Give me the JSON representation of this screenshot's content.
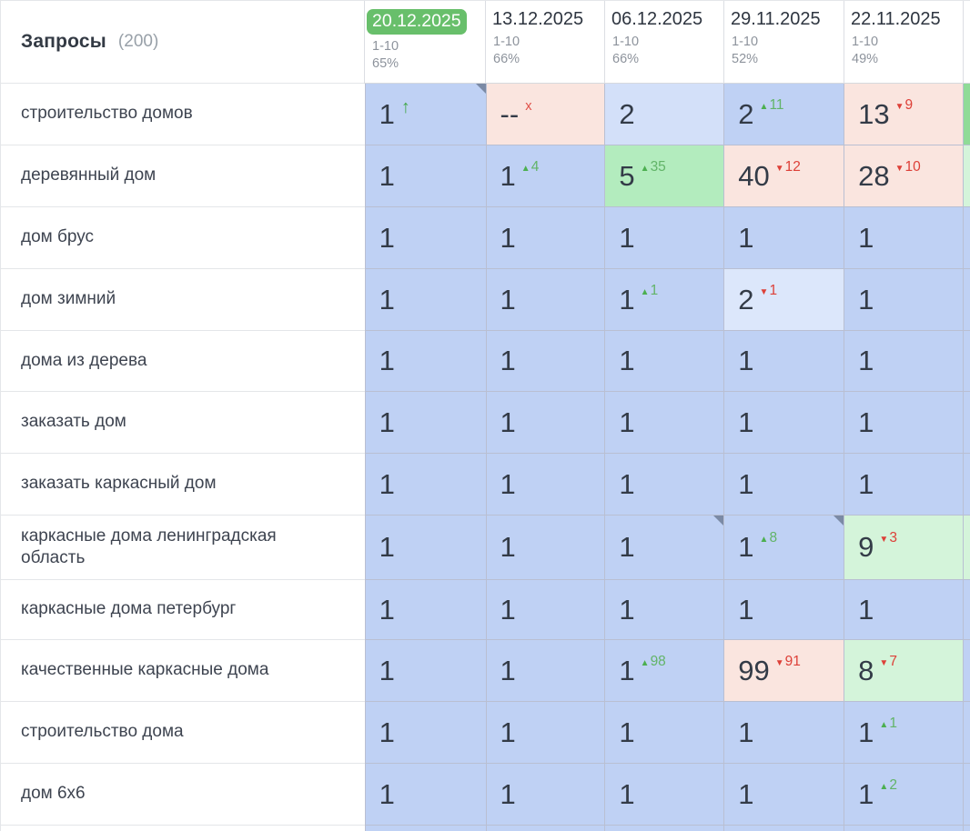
{
  "header": {
    "title": "Запросы",
    "count": "(200)",
    "columns": [
      {
        "date": "20.12.2025",
        "range": "1-10",
        "percent": "65%",
        "highlighted": true
      },
      {
        "date": "13.12.2025",
        "range": "1-10",
        "percent": "66%",
        "highlighted": false
      },
      {
        "date": "06.12.2025",
        "range": "1-10",
        "percent": "66%",
        "highlighted": false
      },
      {
        "date": "29.11.2025",
        "range": "1-10",
        "percent": "52%",
        "highlighted": false
      },
      {
        "date": "22.11.2025",
        "range": "1-10",
        "percent": "49%",
        "highlighted": false
      }
    ]
  },
  "colors": {
    "cell_palette": {
      "blue": "#bfd1f4",
      "blue_light": "#d3e0f9",
      "blue_lighter": "#dce7fb",
      "pink": "#fae5df",
      "green": "#b3ecbe",
      "green_light": "#d4f4da",
      "green_med": "#8fdb97",
      "white": "#ffffff"
    },
    "accent": {
      "highlight_pill": "#68bf6b",
      "up": "#4caf50",
      "down": "#dd4038",
      "note_marker": "#7b8aa5"
    }
  },
  "rows": [
    {
      "keyword": "строительство домов",
      "cells": [
        {
          "value": "1",
          "indicator": "up-arrow",
          "bg": "blue",
          "note": true
        },
        {
          "value": "--",
          "indicator": "x",
          "bg": "pink"
        },
        {
          "value": "2",
          "bg": "blue_light"
        },
        {
          "value": "2",
          "change": {
            "dir": "up",
            "amount": "11"
          },
          "bg": "blue"
        },
        {
          "value": "13",
          "change": {
            "dir": "down",
            "amount": "9"
          },
          "bg": "pink"
        }
      ],
      "edge": "green_med"
    },
    {
      "keyword": "деревянный дом",
      "cells": [
        {
          "value": "1",
          "bg": "blue"
        },
        {
          "value": "1",
          "change": {
            "dir": "up",
            "amount": "4"
          },
          "bg": "blue"
        },
        {
          "value": "5",
          "change": {
            "dir": "up",
            "amount": "35"
          },
          "bg": "green"
        },
        {
          "value": "40",
          "change": {
            "dir": "down",
            "amount": "12"
          },
          "bg": "pink"
        },
        {
          "value": "28",
          "change": {
            "dir": "down",
            "amount": "10"
          },
          "bg": "pink"
        }
      ],
      "edge": "green_light"
    },
    {
      "keyword": "дом брус",
      "cells": [
        {
          "value": "1",
          "bg": "blue"
        },
        {
          "value": "1",
          "bg": "blue"
        },
        {
          "value": "1",
          "bg": "blue"
        },
        {
          "value": "1",
          "bg": "blue"
        },
        {
          "value": "1",
          "bg": "blue"
        }
      ],
      "edge": "blue"
    },
    {
      "keyword": "дом зимний",
      "cells": [
        {
          "value": "1",
          "bg": "blue"
        },
        {
          "value": "1",
          "bg": "blue"
        },
        {
          "value": "1",
          "change": {
            "dir": "up",
            "amount": "1"
          },
          "bg": "blue"
        },
        {
          "value": "2",
          "change": {
            "dir": "down",
            "amount": "1"
          },
          "bg": "blue_lighter"
        },
        {
          "value": "1",
          "bg": "blue"
        }
      ],
      "edge": "blue"
    },
    {
      "keyword": "дома из дерева",
      "cells": [
        {
          "value": "1",
          "bg": "blue"
        },
        {
          "value": "1",
          "bg": "blue"
        },
        {
          "value": "1",
          "bg": "blue"
        },
        {
          "value": "1",
          "bg": "blue"
        },
        {
          "value": "1",
          "bg": "blue"
        }
      ],
      "edge": "blue"
    },
    {
      "keyword": "заказать дом",
      "cells": [
        {
          "value": "1",
          "bg": "blue"
        },
        {
          "value": "1",
          "bg": "blue"
        },
        {
          "value": "1",
          "bg": "blue"
        },
        {
          "value": "1",
          "bg": "blue"
        },
        {
          "value": "1",
          "bg": "blue"
        }
      ],
      "edge": "blue"
    },
    {
      "keyword": "заказать каркасный дом",
      "cells": [
        {
          "value": "1",
          "bg": "blue"
        },
        {
          "value": "1",
          "bg": "blue"
        },
        {
          "value": "1",
          "bg": "blue"
        },
        {
          "value": "1",
          "bg": "blue"
        },
        {
          "value": "1",
          "bg": "blue"
        }
      ],
      "edge": "blue"
    },
    {
      "keyword": "каркасные дома ленинградская область",
      "cells": [
        {
          "value": "1",
          "bg": "blue"
        },
        {
          "value": "1",
          "bg": "blue"
        },
        {
          "value": "1",
          "bg": "blue",
          "note": true
        },
        {
          "value": "1",
          "change": {
            "dir": "up",
            "amount": "8"
          },
          "bg": "blue",
          "note": true
        },
        {
          "value": "9",
          "change": {
            "dir": "down",
            "amount": "3"
          },
          "bg": "green_light"
        }
      ],
      "edge": "green_light"
    },
    {
      "keyword": "каркасные дома петербург",
      "cells": [
        {
          "value": "1",
          "bg": "blue"
        },
        {
          "value": "1",
          "bg": "blue"
        },
        {
          "value": "1",
          "bg": "blue"
        },
        {
          "value": "1",
          "bg": "blue"
        },
        {
          "value": "1",
          "bg": "blue"
        }
      ],
      "edge": "blue"
    },
    {
      "keyword": "качественные каркасные дома",
      "cells": [
        {
          "value": "1",
          "bg": "blue"
        },
        {
          "value": "1",
          "bg": "blue"
        },
        {
          "value": "1",
          "change": {
            "dir": "up",
            "amount": "98"
          },
          "bg": "blue"
        },
        {
          "value": "99",
          "change": {
            "dir": "down",
            "amount": "91"
          },
          "bg": "pink"
        },
        {
          "value": "8",
          "change": {
            "dir": "down",
            "amount": "7"
          },
          "bg": "green_light"
        }
      ],
      "edge": "blue"
    },
    {
      "keyword": "строительство дома",
      "cells": [
        {
          "value": "1",
          "bg": "blue"
        },
        {
          "value": "1",
          "bg": "blue"
        },
        {
          "value": "1",
          "bg": "blue"
        },
        {
          "value": "1",
          "bg": "blue"
        },
        {
          "value": "1",
          "change": {
            "dir": "up",
            "amount": "1"
          },
          "bg": "blue"
        }
      ],
      "edge": "blue"
    },
    {
      "keyword": "дом 6x6",
      "cells": [
        {
          "value": "1",
          "bg": "blue"
        },
        {
          "value": "1",
          "bg": "blue"
        },
        {
          "value": "1",
          "bg": "blue"
        },
        {
          "value": "1",
          "bg": "blue"
        },
        {
          "value": "1",
          "change": {
            "dir": "up",
            "amount": "2"
          },
          "bg": "blue"
        }
      ],
      "edge": "blue"
    },
    {
      "keyword": "",
      "partial": true,
      "cells": [
        {
          "value": "",
          "bg": "blue"
        },
        {
          "value": "",
          "bg": "blue"
        },
        {
          "value": "",
          "bg": "blue"
        },
        {
          "value": "",
          "bg": "blue"
        },
        {
          "value": "",
          "bg": "blue"
        }
      ],
      "edge": "blue"
    }
  ]
}
